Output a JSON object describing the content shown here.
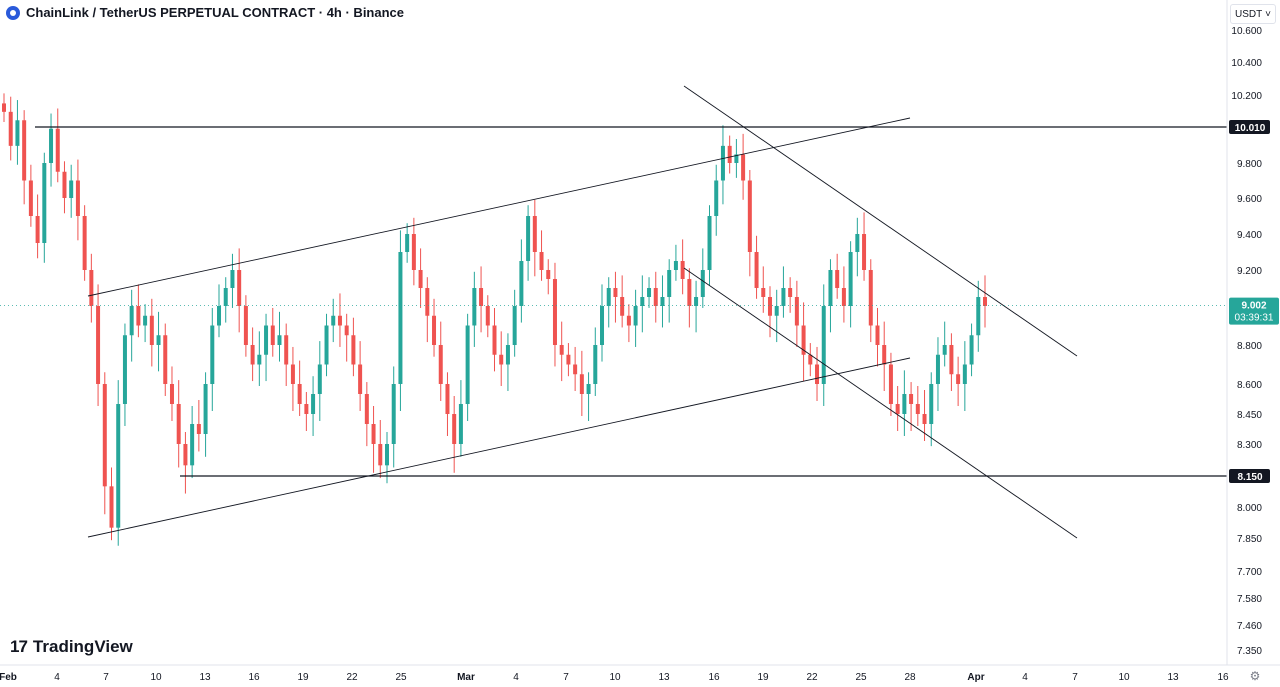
{
  "header": {
    "title": "ChainLink / TetherUS PERPETUAL CONTRACT · 4h · Binance",
    "symbol_icon": "chainlink-logo-icon"
  },
  "currency_selector": {
    "label": "USDT",
    "icon": "chevron-down-icon"
  },
  "logo": {
    "mark": "17",
    "text": "TradingView"
  },
  "settings_icon": "gear-icon",
  "chart_data": {
    "type": "candlestick",
    "y_ticks": [
      "10.600",
      "10.400",
      "10.200",
      "9.800",
      "9.600",
      "9.400",
      "9.200",
      "8.800",
      "8.600",
      "8.450",
      "8.300",
      "8.000",
      "7.850",
      "7.700",
      "7.580",
      "7.460",
      "7.350"
    ],
    "x_ticks": [
      "Feb",
      "4",
      "7",
      "10",
      "13",
      "16",
      "19",
      "22",
      "25",
      "Mar",
      "4",
      "7",
      "10",
      "13",
      "16",
      "19",
      "22",
      "25",
      "28",
      "Apr",
      "4",
      "7",
      "10",
      "13",
      "16"
    ],
    "price_labels": [
      {
        "value": "10.010",
        "style": "dark"
      },
      {
        "value": "8.150",
        "style": "dark"
      }
    ],
    "current_price": {
      "value": "9.002",
      "countdown": "03:39:31",
      "color": "#26a69a"
    },
    "horizontal_levels": [
      10.01,
      8.15
    ],
    "up_color": "#26a69a",
    "down_color": "#ef5350",
    "grid": false,
    "closes": [
      10.1,
      9.9,
      10.05,
      9.7,
      9.5,
      9.35,
      9.8,
      10.0,
      9.75,
      9.6,
      9.7,
      9.5,
      9.2,
      9.0,
      8.6,
      8.1,
      7.9,
      8.5,
      8.85,
      9.0,
      8.9,
      8.95,
      8.8,
      8.85,
      8.6,
      8.5,
      8.3,
      8.2,
      8.4,
      8.35,
      8.6,
      8.9,
      9.0,
      9.1,
      9.2,
      9.0,
      8.8,
      8.7,
      8.75,
      8.9,
      8.8,
      8.85,
      8.7,
      8.6,
      8.5,
      8.45,
      8.55,
      8.7,
      8.9,
      8.95,
      8.9,
      8.85,
      8.7,
      8.55,
      8.4,
      8.3,
      8.2,
      8.3,
      8.6,
      9.3,
      9.4,
      9.2,
      9.1,
      8.95,
      8.8,
      8.6,
      8.45,
      8.3,
      8.5,
      8.9,
      9.1,
      9.0,
      8.9,
      8.75,
      8.7,
      8.8,
      9.0,
      9.25,
      9.5,
      9.3,
      9.2,
      9.15,
      8.8,
      8.75,
      8.7,
      8.65,
      8.55,
      8.6,
      8.8,
      9.0,
      9.1,
      9.05,
      8.95,
      8.9,
      9.0,
      9.05,
      9.1,
      9.0,
      9.05,
      9.2,
      9.25,
      9.15,
      9.0,
      9.05,
      9.2,
      9.5,
      9.7,
      9.9,
      9.8,
      9.85,
      9.7,
      9.3,
      9.1,
      9.05,
      8.95,
      9.0,
      9.1,
      9.05,
      8.9,
      8.75,
      8.7,
      8.6,
      9.0,
      9.2,
      9.1,
      9.0,
      9.3,
      9.4,
      9.2,
      8.9,
      8.8,
      8.7,
      8.5,
      8.45,
      8.55,
      8.5,
      8.45,
      8.4,
      8.6,
      8.75,
      8.8,
      8.65,
      8.6,
      8.7,
      8.85,
      9.05,
      9.0
    ]
  }
}
